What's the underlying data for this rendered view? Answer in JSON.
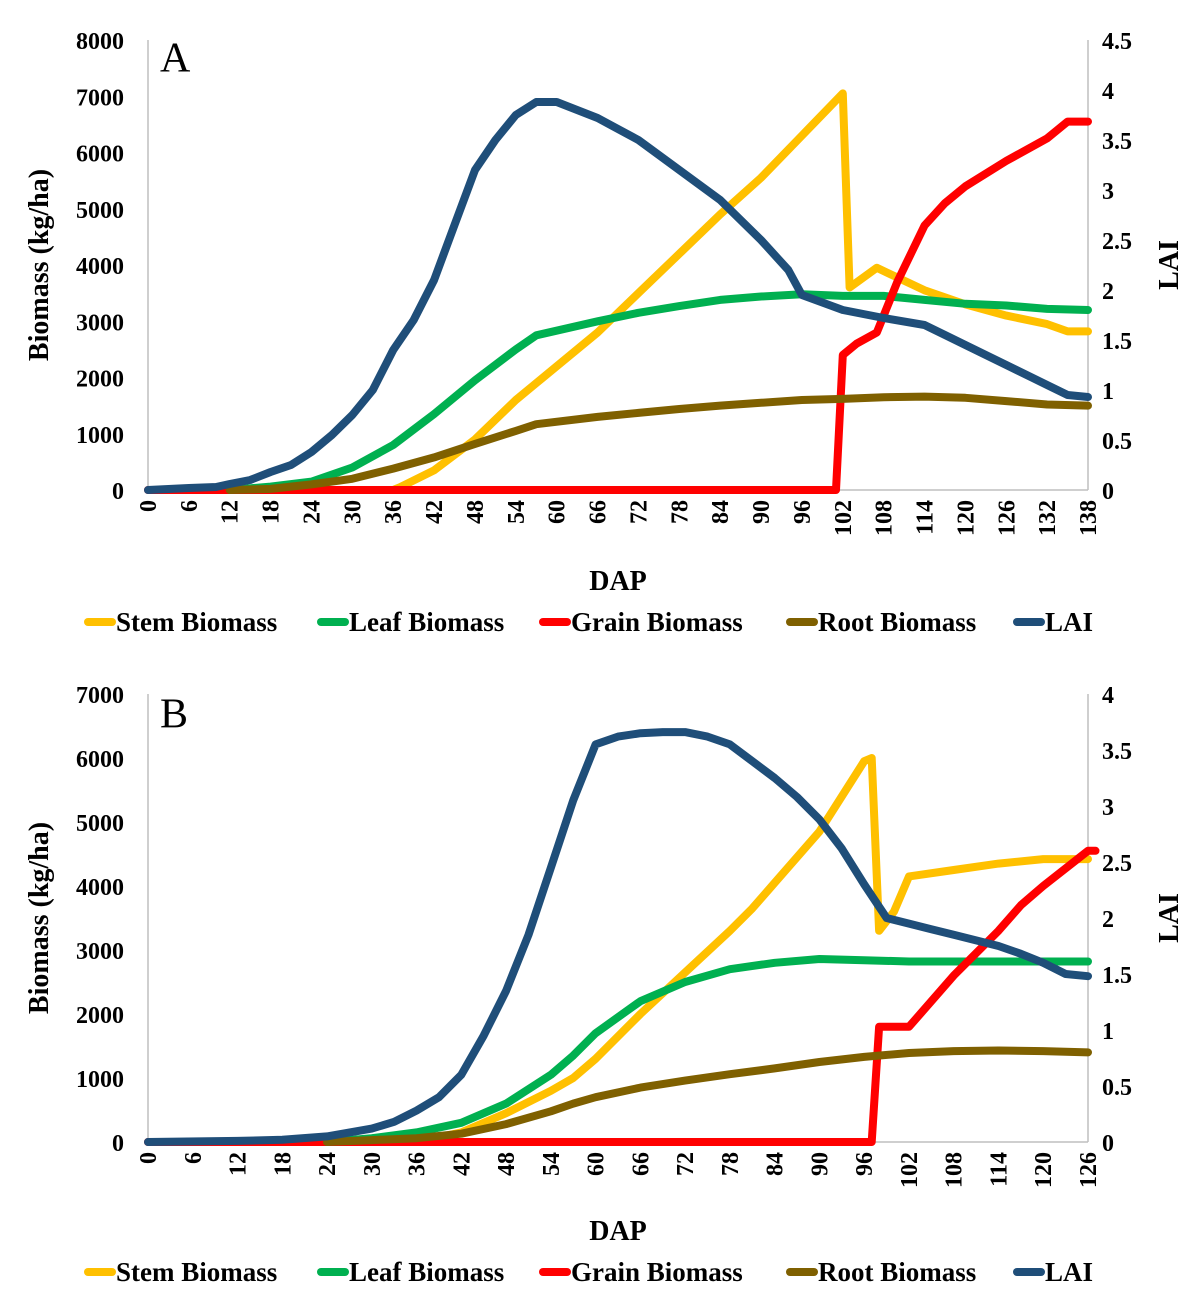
{
  "chart_data": [
    {
      "type": "line",
      "panel_label": "A",
      "xlabel": "DAP",
      "ylabel": "Biomass (kg/ha)",
      "y2label": "LAI",
      "xlim": [
        0,
        138
      ],
      "ylim": [
        0,
        8000
      ],
      "y2lim": [
        0,
        4.5
      ],
      "x_ticks": [
        0,
        6,
        12,
        18,
        24,
        30,
        36,
        42,
        48,
        54,
        60,
        66,
        72,
        78,
        84,
        90,
        96,
        102,
        108,
        114,
        120,
        126,
        132,
        138
      ],
      "y_ticks": [
        0,
        1000,
        2000,
        3000,
        4000,
        5000,
        6000,
        7000,
        8000
      ],
      "y2_ticks": [
        0,
        0.5,
        1,
        1.5,
        2,
        2.5,
        3,
        3.5,
        4,
        4.5
      ],
      "legend_position": "bottom",
      "series": [
        {
          "name": "Stem Biomass",
          "color": "#FFC000",
          "axis": "left",
          "points": [
            [
              36,
              0
            ],
            [
              37,
              50
            ],
            [
              42,
              350
            ],
            [
              48,
              900
            ],
            [
              54,
              1600
            ],
            [
              57,
              1900
            ],
            [
              66,
              2800
            ],
            [
              72,
              3500
            ],
            [
              78,
              4200
            ],
            [
              84,
              4900
            ],
            [
              90,
              5550
            ],
            [
              96,
              6300
            ],
            [
              102,
              7050
            ],
            [
              103,
              3600
            ],
            [
              107,
              3950
            ],
            [
              114,
              3550
            ],
            [
              120,
              3300
            ],
            [
              126,
              3100
            ],
            [
              132,
              2950
            ],
            [
              135,
              2820
            ],
            [
              138,
              2820
            ]
          ]
        },
        {
          "name": "Leaf Biomass",
          "color": "#00B050",
          "axis": "left",
          "points": [
            [
              12,
              0
            ],
            [
              18,
              60
            ],
            [
              24,
              150
            ],
            [
              30,
              400
            ],
            [
              36,
              800
            ],
            [
              42,
              1350
            ],
            [
              48,
              1950
            ],
            [
              54,
              2500
            ],
            [
              57,
              2750
            ],
            [
              66,
              3000
            ],
            [
              72,
              3150
            ],
            [
              78,
              3270
            ],
            [
              84,
              3380
            ],
            [
              90,
              3440
            ],
            [
              96,
              3480
            ],
            [
              102,
              3450
            ],
            [
              108,
              3450
            ],
            [
              114,
              3380
            ],
            [
              120,
              3310
            ],
            [
              126,
              3280
            ],
            [
              132,
              3220
            ],
            [
              138,
              3200
            ]
          ]
        },
        {
          "name": "Grain Biomass",
          "color": "#FF0000",
          "axis": "left",
          "points": [
            [
              0,
              0
            ],
            [
              101,
              0
            ],
            [
              102,
              2400
            ],
            [
              104,
              2600
            ],
            [
              107,
              2800
            ],
            [
              110,
              3700
            ],
            [
              114,
              4700
            ],
            [
              117,
              5100
            ],
            [
              120,
              5400
            ],
            [
              126,
              5850
            ],
            [
              132,
              6250
            ],
            [
              135,
              6550
            ],
            [
              138,
              6550
            ]
          ]
        },
        {
          "name": "Root Biomass",
          "color": "#7F6000",
          "axis": "left",
          "points": [
            [
              12,
              0
            ],
            [
              18,
              20
            ],
            [
              24,
              100
            ],
            [
              30,
              200
            ],
            [
              36,
              380
            ],
            [
              42,
              580
            ],
            [
              48,
              820
            ],
            [
              54,
              1050
            ],
            [
              57,
              1170
            ],
            [
              66,
              1300
            ],
            [
              72,
              1370
            ],
            [
              78,
              1440
            ],
            [
              84,
              1500
            ],
            [
              90,
              1550
            ],
            [
              96,
              1600
            ],
            [
              102,
              1620
            ],
            [
              108,
              1650
            ],
            [
              114,
              1660
            ],
            [
              120,
              1640
            ],
            [
              126,
              1580
            ],
            [
              132,
              1520
            ],
            [
              138,
              1500
            ]
          ]
        },
        {
          "name": "LAI",
          "color": "#1F4E79",
          "axis": "right",
          "points": [
            [
              0,
              0
            ],
            [
              6,
              0.02
            ],
            [
              10,
              0.03
            ],
            [
              12,
              0.06
            ],
            [
              15,
              0.1
            ],
            [
              18,
              0.18
            ],
            [
              21,
              0.25
            ],
            [
              24,
              0.38
            ],
            [
              27,
              0.55
            ],
            [
              30,
              0.75
            ],
            [
              33,
              1.0
            ],
            [
              36,
              1.4
            ],
            [
              39,
              1.7
            ],
            [
              42,
              2.1
            ],
            [
              45,
              2.65
            ],
            [
              48,
              3.2
            ],
            [
              51,
              3.5
            ],
            [
              54,
              3.75
            ],
            [
              57,
              3.88
            ],
            [
              60,
              3.88
            ],
            [
              66,
              3.72
            ],
            [
              72,
              3.5
            ],
            [
              78,
              3.2
            ],
            [
              84,
              2.9
            ],
            [
              90,
              2.5
            ],
            [
              94,
              2.2
            ],
            [
              96,
              1.95
            ],
            [
              102,
              1.8
            ],
            [
              108,
              1.72
            ],
            [
              114,
              1.65
            ],
            [
              117,
              1.55
            ],
            [
              120,
              1.45
            ],
            [
              126,
              1.25
            ],
            [
              132,
              1.05
            ],
            [
              135,
              0.95
            ],
            [
              138,
              0.93
            ]
          ]
        }
      ]
    },
    {
      "type": "line",
      "panel_label": "B",
      "xlabel": "DAP",
      "ylabel": "Biomass (kg/ha)",
      "y2label": "LAI",
      "xlim": [
        0,
        126
      ],
      "ylim": [
        0,
        7000
      ],
      "y2lim": [
        0,
        4
      ],
      "x_ticks": [
        0,
        6,
        12,
        18,
        24,
        30,
        36,
        42,
        48,
        54,
        60,
        66,
        72,
        78,
        84,
        90,
        96,
        102,
        108,
        114,
        120,
        126
      ],
      "y_ticks": [
        0,
        1000,
        2000,
        3000,
        4000,
        5000,
        6000,
        7000
      ],
      "y2_ticks": [
        0,
        0.5,
        1,
        1.5,
        2,
        2.5,
        3,
        3.5,
        4
      ],
      "legend_position": "bottom",
      "series": [
        {
          "name": "Stem Biomass",
          "color": "#FFC000",
          "axis": "left",
          "points": [
            [
              36,
              0
            ],
            [
              42,
              150
            ],
            [
              48,
              450
            ],
            [
              54,
              800
            ],
            [
              57,
              1000
            ],
            [
              60,
              1300
            ],
            [
              66,
              2000
            ],
            [
              72,
              2650
            ],
            [
              78,
              3300
            ],
            [
              81,
              3650
            ],
            [
              84,
              4050
            ],
            [
              90,
              4850
            ],
            [
              96,
              5950
            ],
            [
              97,
              6000
            ],
            [
              98,
              3300
            ],
            [
              100,
              3600
            ],
            [
              102,
              4150
            ],
            [
              108,
              4250
            ],
            [
              114,
              4350
            ],
            [
              120,
              4420
            ],
            [
              126,
              4420
            ]
          ]
        },
        {
          "name": "Leaf Biomass",
          "color": "#00B050",
          "axis": "left",
          "points": [
            [
              24,
              0
            ],
            [
              30,
              60
            ],
            [
              36,
              150
            ],
            [
              42,
              300
            ],
            [
              48,
              600
            ],
            [
              54,
              1050
            ],
            [
              57,
              1350
            ],
            [
              60,
              1700
            ],
            [
              66,
              2200
            ],
            [
              72,
              2500
            ],
            [
              78,
              2700
            ],
            [
              84,
              2800
            ],
            [
              90,
              2860
            ],
            [
              96,
              2840
            ],
            [
              102,
              2820
            ],
            [
              108,
              2820
            ],
            [
              114,
              2820
            ],
            [
              120,
              2820
            ],
            [
              126,
              2820
            ]
          ]
        },
        {
          "name": "Grain Biomass",
          "color": "#FF0000",
          "axis": "left",
          "points": [
            [
              0,
              0
            ],
            [
              96,
              0
            ],
            [
              97,
              0
            ],
            [
              98,
              1800
            ],
            [
              100,
              1800
            ],
            [
              102,
              1800
            ],
            [
              108,
              2600
            ],
            [
              114,
              3300
            ],
            [
              117,
              3700
            ],
            [
              120,
              4000
            ],
            [
              126,
              4550
            ],
            [
              127,
              4550
            ]
          ]
        },
        {
          "name": "Root Biomass",
          "color": "#7F6000",
          "axis": "left",
          "points": [
            [
              24,
              0
            ],
            [
              30,
              30
            ],
            [
              36,
              60
            ],
            [
              42,
              130
            ],
            [
              48,
              280
            ],
            [
              54,
              480
            ],
            [
              57,
              600
            ],
            [
              60,
              700
            ],
            [
              66,
              850
            ],
            [
              72,
              960
            ],
            [
              78,
              1060
            ],
            [
              84,
              1150
            ],
            [
              90,
              1250
            ],
            [
              96,
              1330
            ],
            [
              102,
              1390
            ],
            [
              108,
              1420
            ],
            [
              114,
              1430
            ],
            [
              120,
              1420
            ],
            [
              126,
              1400
            ]
          ]
        },
        {
          "name": "LAI",
          "color": "#1F4E79",
          "axis": "right",
          "points": [
            [
              0,
              0
            ],
            [
              12,
              0.01
            ],
            [
              18,
              0.02
            ],
            [
              24,
              0.05
            ],
            [
              30,
              0.12
            ],
            [
              33,
              0.18
            ],
            [
              36,
              0.28
            ],
            [
              39,
              0.4
            ],
            [
              42,
              0.6
            ],
            [
              45,
              0.95
            ],
            [
              48,
              1.35
            ],
            [
              51,
              1.85
            ],
            [
              54,
              2.45
            ],
            [
              57,
              3.05
            ],
            [
              60,
              3.55
            ],
            [
              63,
              3.62
            ],
            [
              66,
              3.65
            ],
            [
              69,
              3.66
            ],
            [
              72,
              3.66
            ],
            [
              75,
              3.62
            ],
            [
              78,
              3.55
            ],
            [
              81,
              3.4
            ],
            [
              84,
              3.25
            ],
            [
              87,
              3.08
            ],
            [
              90,
              2.88
            ],
            [
              93,
              2.62
            ],
            [
              96,
              2.3
            ],
            [
              99,
              2.0
            ],
            [
              102,
              1.95
            ],
            [
              105,
              1.9
            ],
            [
              108,
              1.85
            ],
            [
              111,
              1.8
            ],
            [
              114,
              1.75
            ],
            [
              117,
              1.68
            ],
            [
              120,
              1.6
            ],
            [
              123,
              1.5
            ],
            [
              126,
              1.48
            ]
          ]
        }
      ]
    }
  ]
}
